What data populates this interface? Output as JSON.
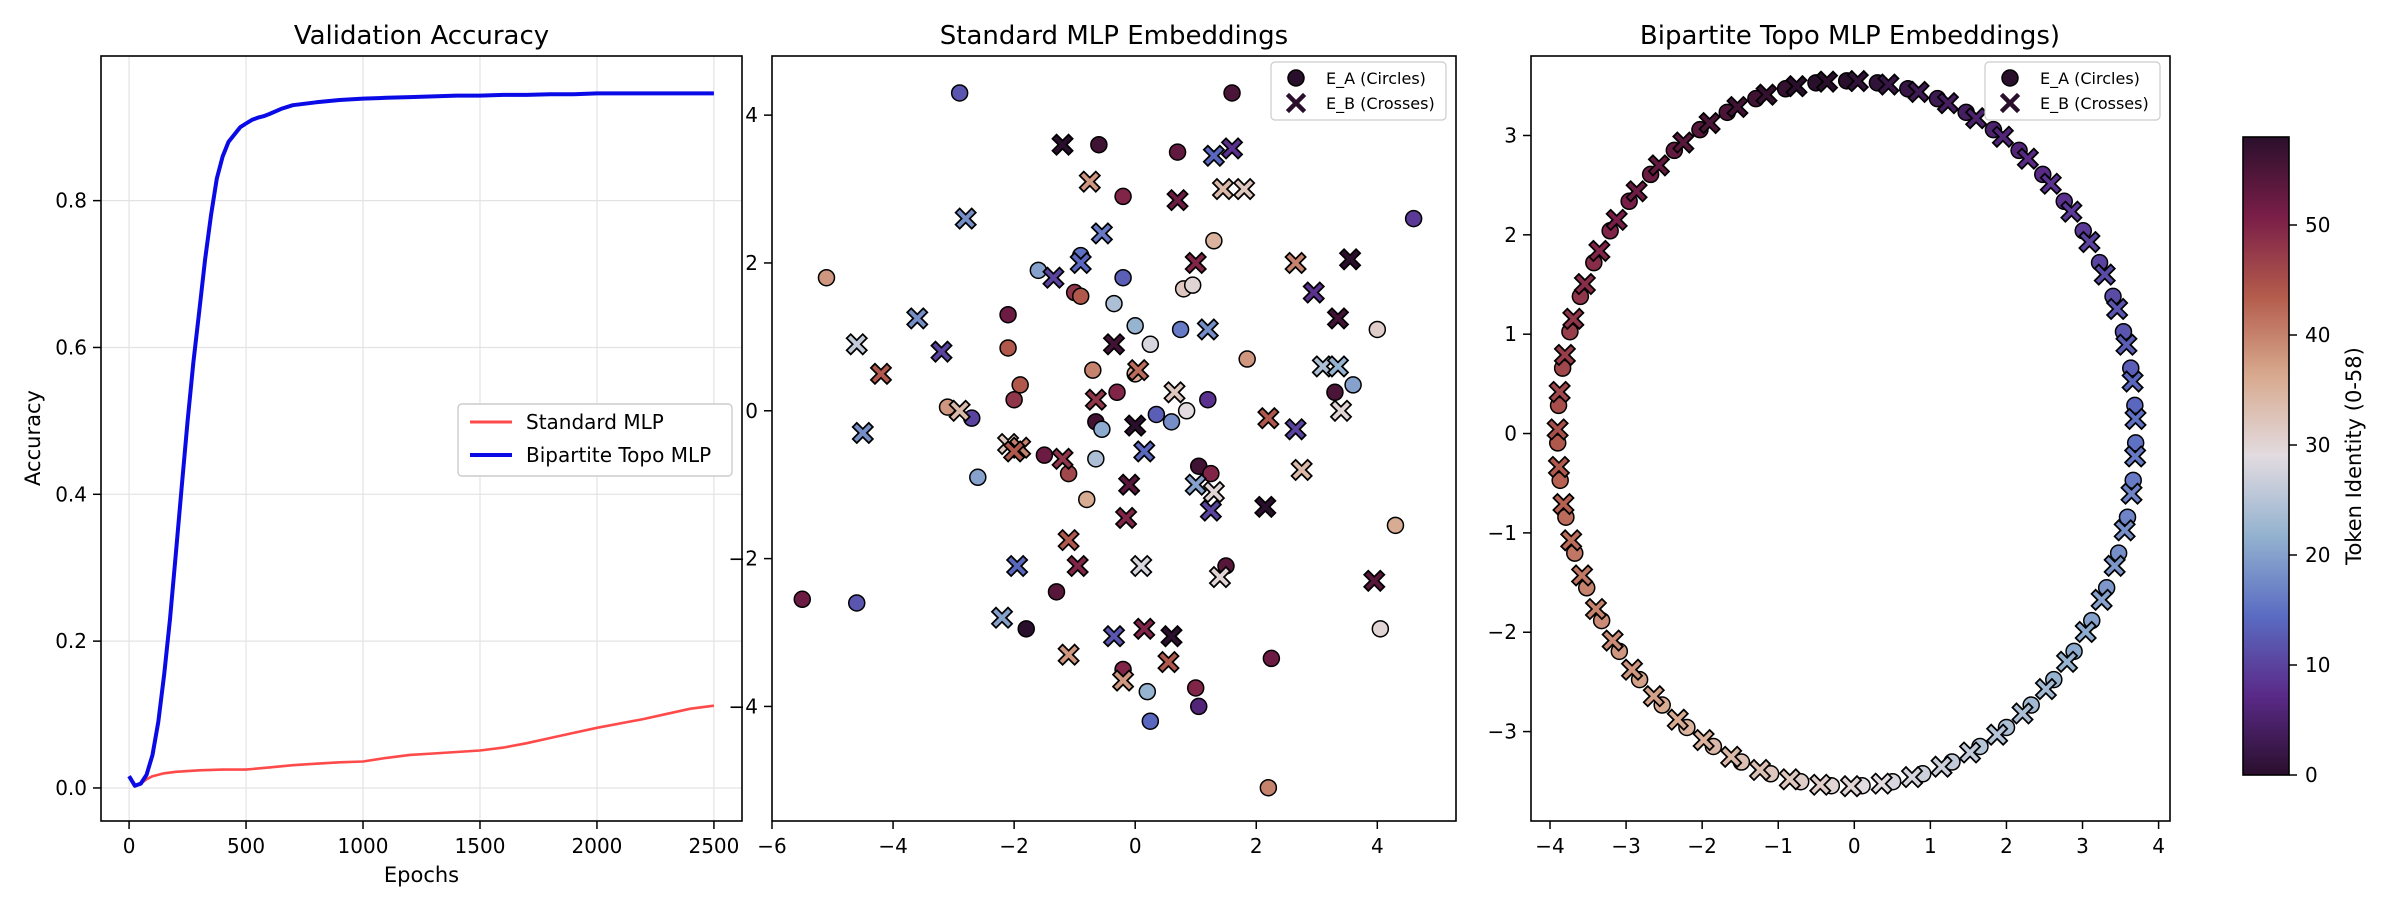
{
  "chart_data": [
    {
      "type": "line",
      "title": "Validation Accuracy",
      "xlabel": "Epochs",
      "ylabel": "Accuracy",
      "xlim": [
        -120,
        2620
      ],
      "ylim": [
        -0.045,
        0.997
      ],
      "xticks": [
        0,
        500,
        1000,
        1500,
        2000,
        2500
      ],
      "yticks": [
        0.0,
        0.2,
        0.4,
        0.6,
        0.8
      ],
      "ytick_labels": [
        "0.0",
        "0.2",
        "0.4",
        "0.6",
        "0.8"
      ],
      "grid": true,
      "legend_position": "center-right",
      "series": [
        {
          "name": "Standard MLP",
          "color": "#ff4a4a",
          "x": [
            0,
            25,
            50,
            75,
            100,
            150,
            200,
            300,
            400,
            500,
            600,
            700,
            800,
            900,
            1000,
            1100,
            1200,
            1300,
            1400,
            1500,
            1600,
            1700,
            1800,
            1900,
            2000,
            2100,
            2200,
            2300,
            2400,
            2500
          ],
          "values": [
            0.016,
            0.004,
            0.006,
            0.012,
            0.016,
            0.02,
            0.022,
            0.024,
            0.025,
            0.025,
            0.028,
            0.031,
            0.033,
            0.035,
            0.036,
            0.041,
            0.045,
            0.047,
            0.049,
            0.051,
            0.055,
            0.061,
            0.068,
            0.075,
            0.082,
            0.088,
            0.094,
            0.101,
            0.108,
            0.112
          ]
        },
        {
          "name": "Bipartite Topo MLP",
          "color": "#0a0ae6",
          "x": [
            0,
            25,
            50,
            75,
            100,
            125,
            150,
            175,
            200,
            225,
            250,
            275,
            300,
            325,
            350,
            375,
            400,
            425,
            450,
            475,
            500,
            525,
            550,
            575,
            600,
            650,
            700,
            800,
            900,
            1000,
            1100,
            1200,
            1300,
            1400,
            1500,
            1600,
            1700,
            1800,
            1900,
            2000,
            2100,
            2200,
            2300,
            2400,
            2500
          ],
          "values": [
            0.016,
            0.003,
            0.006,
            0.018,
            0.045,
            0.09,
            0.155,
            0.23,
            0.32,
            0.41,
            0.5,
            0.58,
            0.65,
            0.72,
            0.78,
            0.83,
            0.86,
            0.88,
            0.89,
            0.9,
            0.905,
            0.91,
            0.913,
            0.915,
            0.918,
            0.925,
            0.93,
            0.934,
            0.937,
            0.939,
            0.94,
            0.941,
            0.942,
            0.943,
            0.943,
            0.944,
            0.944,
            0.945,
            0.945,
            0.946,
            0.946,
            0.946,
            0.946,
            0.946,
            0.946
          ]
        }
      ]
    },
    {
      "type": "scatter",
      "title": "Standard MLP Embeddings",
      "xlim": [
        -6.0,
        5.3
      ],
      "ylim": [
        -5.55,
        4.8
      ],
      "xticks": [
        -6,
        -4,
        -2,
        0,
        2,
        4
      ],
      "yticks": [
        -4,
        -2,
        0,
        2,
        4
      ],
      "legend_position": "top-right",
      "legend": [
        "E_A (Circles)",
        "E_B (Crosses)"
      ],
      "series": [
        {
          "name": "E_A (Circles)",
          "marker": "circle",
          "points": [
            {
              "x": -2.9,
              "y": 4.3,
              "token": 12
            },
            {
              "x": 1.6,
              "y": 4.3,
              "token": 55
            },
            {
              "x": 4.6,
              "y": 2.6,
              "token": 9
            },
            {
              "x": -0.6,
              "y": 3.6,
              "token": 56
            },
            {
              "x": 0.7,
              "y": 3.5,
              "token": 53
            },
            {
              "x": -0.2,
              "y": 2.9,
              "token": 50
            },
            {
              "x": -5.1,
              "y": 1.8,
              "token": 38
            },
            {
              "x": 1.3,
              "y": 2.3,
              "token": 35
            },
            {
              "x": -1.6,
              "y": 1.9,
              "token": 20
            },
            {
              "x": -0.9,
              "y": 2.1,
              "token": 15
            },
            {
              "x": -1.0,
              "y": 1.6,
              "token": 48
            },
            {
              "x": -0.9,
              "y": 1.55,
              "token": 44
            },
            {
              "x": -0.2,
              "y": 1.8,
              "token": 13
            },
            {
              "x": 0.8,
              "y": 1.65,
              "token": 32
            },
            {
              "x": 0.95,
              "y": 1.7,
              "token": 30
            },
            {
              "x": -0.35,
              "y": 1.45,
              "token": 24
            },
            {
              "x": 0.0,
              "y": 1.15,
              "token": 22
            },
            {
              "x": 0.25,
              "y": 0.9,
              "token": 28
            },
            {
              "x": 0.75,
              "y": 1.1,
              "token": 16
            },
            {
              "x": -2.1,
              "y": 1.3,
              "token": 52
            },
            {
              "x": -2.1,
              "y": 0.85,
              "token": 44
            },
            {
              "x": 1.85,
              "y": 0.7,
              "token": 38
            },
            {
              "x": 4.0,
              "y": 1.1,
              "token": 31
            },
            {
              "x": 3.6,
              "y": 0.35,
              "token": 20
            },
            {
              "x": -0.7,
              "y": 0.55,
              "token": 40
            },
            {
              "x": 0.0,
              "y": 0.5,
              "token": 36
            },
            {
              "x": -1.9,
              "y": 0.35,
              "token": 44
            },
            {
              "x": -3.1,
              "y": 0.05,
              "token": 38
            },
            {
              "x": -2.7,
              "y": -0.1,
              "token": 10
            },
            {
              "x": -2.0,
              "y": 0.15,
              "token": 48
            },
            {
              "x": -0.3,
              "y": 0.25,
              "token": 50
            },
            {
              "x": 0.35,
              "y": -0.05,
              "token": 13
            },
            {
              "x": 0.6,
              "y": -0.15,
              "token": 18
            },
            {
              "x": 0.85,
              "y": 0.0,
              "token": 29
            },
            {
              "x": 1.2,
              "y": 0.15,
              "token": 8
            },
            {
              "x": 3.3,
              "y": 0.25,
              "token": 55
            },
            {
              "x": -0.65,
              "y": -0.15,
              "token": 56
            },
            {
              "x": -2.6,
              "y": -0.9,
              "token": 20
            },
            {
              "x": -1.5,
              "y": -0.6,
              "token": 52
            },
            {
              "x": -0.65,
              "y": -0.65,
              "token": 24
            },
            {
              "x": -1.1,
              "y": -0.85,
              "token": 46
            },
            {
              "x": -0.8,
              "y": -1.2,
              "token": 36
            },
            {
              "x": 1.05,
              "y": -0.75,
              "token": 56
            },
            {
              "x": 1.25,
              "y": -0.85,
              "token": 50
            },
            {
              "x": -5.5,
              "y": -2.55,
              "token": 52
            },
            {
              "x": -4.6,
              "y": -2.6,
              "token": 12
            },
            {
              "x": 4.3,
              "y": -1.55,
              "token": 36
            },
            {
              "x": 1.5,
              "y": -2.1,
              "token": 54
            },
            {
              "x": -1.3,
              "y": -2.45,
              "token": 54
            },
            {
              "x": -1.8,
              "y": -2.95,
              "token": 58
            },
            {
              "x": 4.05,
              "y": -2.95,
              "token": 30
            },
            {
              "x": 2.25,
              "y": -3.35,
              "token": 52
            },
            {
              "x": -0.2,
              "y": -3.5,
              "token": 50
            },
            {
              "x": 0.2,
              "y": -3.8,
              "token": 22
            },
            {
              "x": 1.0,
              "y": -3.75,
              "token": 50
            },
            {
              "x": 1.05,
              "y": -4.0,
              "token": 6
            },
            {
              "x": 0.25,
              "y": -4.2,
              "token": 14
            },
            {
              "x": 2.2,
              "y": -5.1,
              "token": 40
            },
            {
              "x": -0.55,
              "y": -0.25,
              "token": 21
            }
          ]
        },
        {
          "name": "E_B (Crosses)",
          "marker": "cross",
          "points": [
            {
              "x": -1.2,
              "y": 3.6,
              "token": 58
            },
            {
              "x": 1.6,
              "y": 3.55,
              "token": 8
            },
            {
              "x": 1.3,
              "y": 3.45,
              "token": 14
            },
            {
              "x": -0.75,
              "y": 3.1,
              "token": 38
            },
            {
              "x": 1.45,
              "y": 3.0,
              "token": 34
            },
            {
              "x": 1.8,
              "y": 3.0,
              "token": 32
            },
            {
              "x": 0.7,
              "y": 2.85,
              "token": 52
            },
            {
              "x": -2.8,
              "y": 2.6,
              "token": 18
            },
            {
              "x": -0.55,
              "y": 2.4,
              "token": 16
            },
            {
              "x": 1.0,
              "y": 2.0,
              "token": 50
            },
            {
              "x": -0.9,
              "y": 2.0,
              "token": 14
            },
            {
              "x": -1.35,
              "y": 1.8,
              "token": 10
            },
            {
              "x": 2.65,
              "y": 2.0,
              "token": 40
            },
            {
              "x": 3.55,
              "y": 2.05,
              "token": 58
            },
            {
              "x": -3.6,
              "y": 1.25,
              "token": 18
            },
            {
              "x": 2.95,
              "y": 1.6,
              "token": 8
            },
            {
              "x": 3.35,
              "y": 1.25,
              "token": 56
            },
            {
              "x": -4.6,
              "y": 0.9,
              "token": 26
            },
            {
              "x": -3.2,
              "y": 0.8,
              "token": 10
            },
            {
              "x": -0.35,
              "y": 0.9,
              "token": 56
            },
            {
              "x": 1.2,
              "y": 1.1,
              "token": 18
            },
            {
              "x": 3.1,
              "y": 0.6,
              "token": 24
            },
            {
              "x": 3.35,
              "y": 0.6,
              "token": 22
            },
            {
              "x": -4.2,
              "y": 0.5,
              "token": 44
            },
            {
              "x": 0.05,
              "y": 0.55,
              "token": 42
            },
            {
              "x": -2.9,
              "y": 0.0,
              "token": 34
            },
            {
              "x": -0.65,
              "y": 0.15,
              "token": 48
            },
            {
              "x": 0.65,
              "y": 0.25,
              "token": 32
            },
            {
              "x": 3.4,
              "y": 0.0,
              "token": 30
            },
            {
              "x": 2.2,
              "y": -0.1,
              "token": 44
            },
            {
              "x": 2.65,
              "y": -0.25,
              "token": 10
            },
            {
              "x": 0.0,
              "y": -0.2,
              "token": 58
            },
            {
              "x": -4.5,
              "y": -0.3,
              "token": 18
            },
            {
              "x": -2.1,
              "y": -0.45,
              "token": 32
            },
            {
              "x": -1.9,
              "y": -0.5,
              "token": 40
            },
            {
              "x": -2.0,
              "y": -0.55,
              "token": 44
            },
            {
              "x": 0.15,
              "y": -0.55,
              "token": 14
            },
            {
              "x": -1.2,
              "y": -0.65,
              "token": 48
            },
            {
              "x": 2.75,
              "y": -0.8,
              "token": 34
            },
            {
              "x": 1.0,
              "y": -1.0,
              "token": 20
            },
            {
              "x": -0.1,
              "y": -1.0,
              "token": 54
            },
            {
              "x": 1.3,
              "y": -1.1,
              "token": 30
            },
            {
              "x": 1.25,
              "y": -1.35,
              "token": 10
            },
            {
              "x": 2.15,
              "y": -1.3,
              "token": 58
            },
            {
              "x": -0.15,
              "y": -1.45,
              "token": 50
            },
            {
              "x": -1.1,
              "y": -1.75,
              "token": 44
            },
            {
              "x": -1.95,
              "y": -2.1,
              "token": 14
            },
            {
              "x": -0.95,
              "y": -2.1,
              "token": 50
            },
            {
              "x": 0.1,
              "y": -2.1,
              "token": 28
            },
            {
              "x": 1.4,
              "y": -2.25,
              "token": 30
            },
            {
              "x": 3.95,
              "y": -2.3,
              "token": 54
            },
            {
              "x": -2.2,
              "y": -2.8,
              "token": 20
            },
            {
              "x": 0.15,
              "y": -2.95,
              "token": 50
            },
            {
              "x": -0.35,
              "y": -3.05,
              "token": 12
            },
            {
              "x": 0.6,
              "y": -3.05,
              "token": 58
            },
            {
              "x": -1.1,
              "y": -3.3,
              "token": 38
            },
            {
              "x": 0.55,
              "y": -3.4,
              "token": 44
            },
            {
              "x": -0.2,
              "y": -3.65,
              "token": 38
            }
          ]
        }
      ]
    },
    {
      "type": "scatter",
      "title": "Bipartite Topo MLP Embeddings)",
      "xlim": [
        -4.25,
        4.15
      ],
      "ylim": [
        -3.9,
        3.8
      ],
      "xticks": [
        -4,
        -3,
        -2,
        -1,
        0,
        1,
        2,
        3,
        4
      ],
      "yticks": [
        -3,
        -2,
        -1,
        0,
        1,
        2,
        3
      ],
      "legend_position": "top-right",
      "legend": [
        "E_A (Circles)",
        "E_B (Crosses)"
      ],
      "ring": {
        "center_x": -0.1,
        "center_y": 0.0,
        "radius_x": 3.8,
        "radius_y": 3.55,
        "points_per_series": 59,
        "start_angle_deg": 90,
        "cross_offset_deg": -2.2
      },
      "colorbar": {
        "label": "Token Identity (0-58)",
        "min": 0,
        "max": 58,
        "ticks": [
          0,
          10,
          20,
          30,
          40,
          50
        ],
        "colormap": "twilight_shifted",
        "stops": [
          "#2a0f2c",
          "#5a2a88",
          "#5a6cc2",
          "#93b2cf",
          "#e2dbe0",
          "#d8aa8f",
          "#b45c4c",
          "#7a1e48",
          "#2a0f2c"
        ]
      }
    }
  ]
}
